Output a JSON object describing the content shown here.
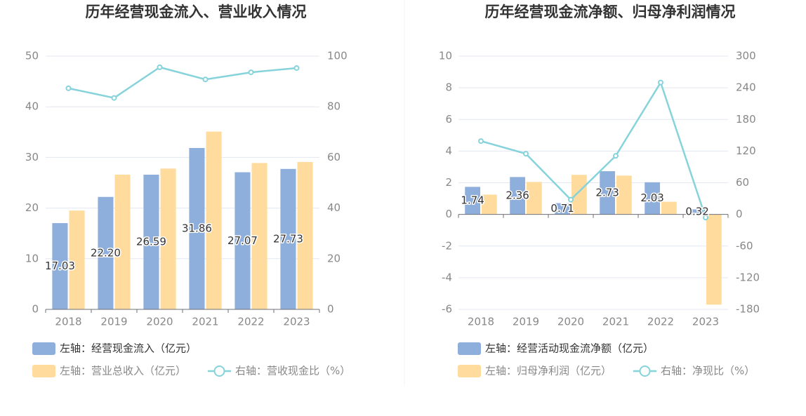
{
  "chart_data": [
    {
      "type": "bar",
      "title": "历年经营现金流入、营业收入情况",
      "categories": [
        "2018",
        "2019",
        "2020",
        "2021",
        "2022",
        "2023"
      ],
      "series": [
        {
          "name": "左轴：经营现金流入（亿元）",
          "axis": "left",
          "type": "bar",
          "color": "#8EAEDC",
          "values": [
            17.03,
            22.2,
            26.59,
            31.86,
            27.07,
            27.73
          ],
          "labels": [
            "17.03",
            "22.20",
            "26.59",
            "31.86",
            "27.07",
            "27.73"
          ]
        },
        {
          "name": "左轴：营业总收入（亿元）",
          "axis": "left",
          "type": "bar",
          "color": "#FFDB9E",
          "values": [
            19.5,
            26.6,
            27.8,
            35.1,
            28.9,
            29.1
          ]
        },
        {
          "name": "右轴：营收现金比（%）",
          "axis": "right",
          "type": "line",
          "color": "#86D3DB",
          "values": [
            87.3,
            83.5,
            95.6,
            90.8,
            93.6,
            95.3
          ]
        }
      ],
      "left_axis": {
        "ylim": [
          0,
          50
        ],
        "ticks": [
          "0",
          "10",
          "20",
          "30",
          "40",
          "50"
        ]
      },
      "right_axis": {
        "ylim": [
          0,
          100
        ],
        "ticks": [
          "0",
          "20",
          "40",
          "60",
          "80",
          "100"
        ]
      },
      "grid": true,
      "legend_position": "bottom-left"
    },
    {
      "type": "bar",
      "title": "历年经营现金流净额、归母净利润情况",
      "categories": [
        "2018",
        "2019",
        "2020",
        "2021",
        "2022",
        "2023"
      ],
      "series": [
        {
          "name": "左轴：经营活动现金流净额（亿元）",
          "axis": "left",
          "type": "bar",
          "color": "#8EAEDC",
          "values": [
            1.74,
            2.36,
            0.71,
            2.73,
            2.03,
            0.32
          ],
          "labels": [
            "1.74",
            "2.36",
            "0.71",
            "2.73",
            "2.03",
            "0.32"
          ]
        },
        {
          "name": "左轴：归母净利润（亿元）",
          "axis": "left",
          "type": "bar",
          "color": "#FFDB9E",
          "values": [
            1.25,
            2.05,
            2.5,
            2.45,
            0.8,
            -5.7
          ]
        },
        {
          "name": "右轴：净现比（%）",
          "axis": "right",
          "type": "line",
          "color": "#86D3DB",
          "values": [
            139,
            115,
            28,
            111,
            250,
            -6
          ]
        }
      ],
      "left_axis": {
        "ylim": [
          -6,
          10
        ],
        "ticks": [
          "-6",
          "-4",
          "-2",
          "0",
          "2",
          "4",
          "6",
          "8",
          "10"
        ]
      },
      "right_axis": {
        "ylim": [
          -180,
          300
        ],
        "ticks": [
          "-180",
          "-120",
          "-60",
          "0",
          "60",
          "120",
          "180",
          "240",
          "300"
        ]
      },
      "grid": true,
      "legend_position": "bottom-left"
    }
  ],
  "colors": {
    "title": "#333333",
    "tick": "#888888",
    "grid": "#E3E7F1",
    "axis": "#6E7079",
    "legend_text": "#333333",
    "legend_text_muted": "#888888"
  }
}
